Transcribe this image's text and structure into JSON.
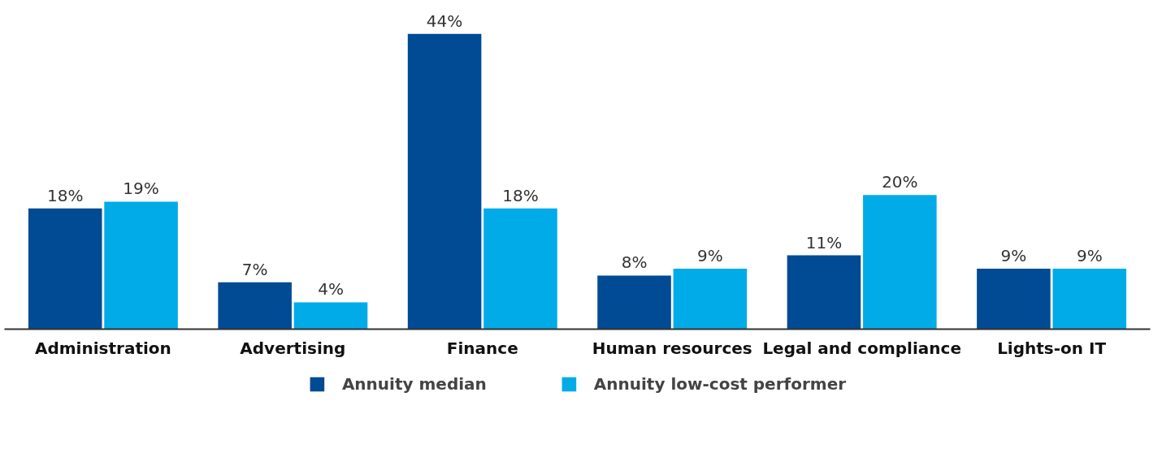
{
  "chart_data": {
    "type": "bar",
    "categories": [
      "Administration",
      "Advertising",
      "Finance",
      "Human resources",
      "Legal and compliance",
      "Lights-on IT"
    ],
    "series": [
      {
        "name": "Annuity median",
        "color": "#004b93",
        "values": [
          18,
          7,
          44,
          8,
          11,
          9
        ],
        "value_labels": [
          "18%",
          "7%",
          "44%",
          "8%",
          "11%",
          "9%"
        ]
      },
      {
        "name": "Annuity low-cost performer",
        "color": "#00abe8",
        "values": [
          19,
          4,
          18,
          9,
          20,
          9
        ],
        "value_labels": [
          "19%",
          "4%",
          "18%",
          "9%",
          "20%",
          "9%"
        ]
      }
    ],
    "legend": "bottom"
  }
}
